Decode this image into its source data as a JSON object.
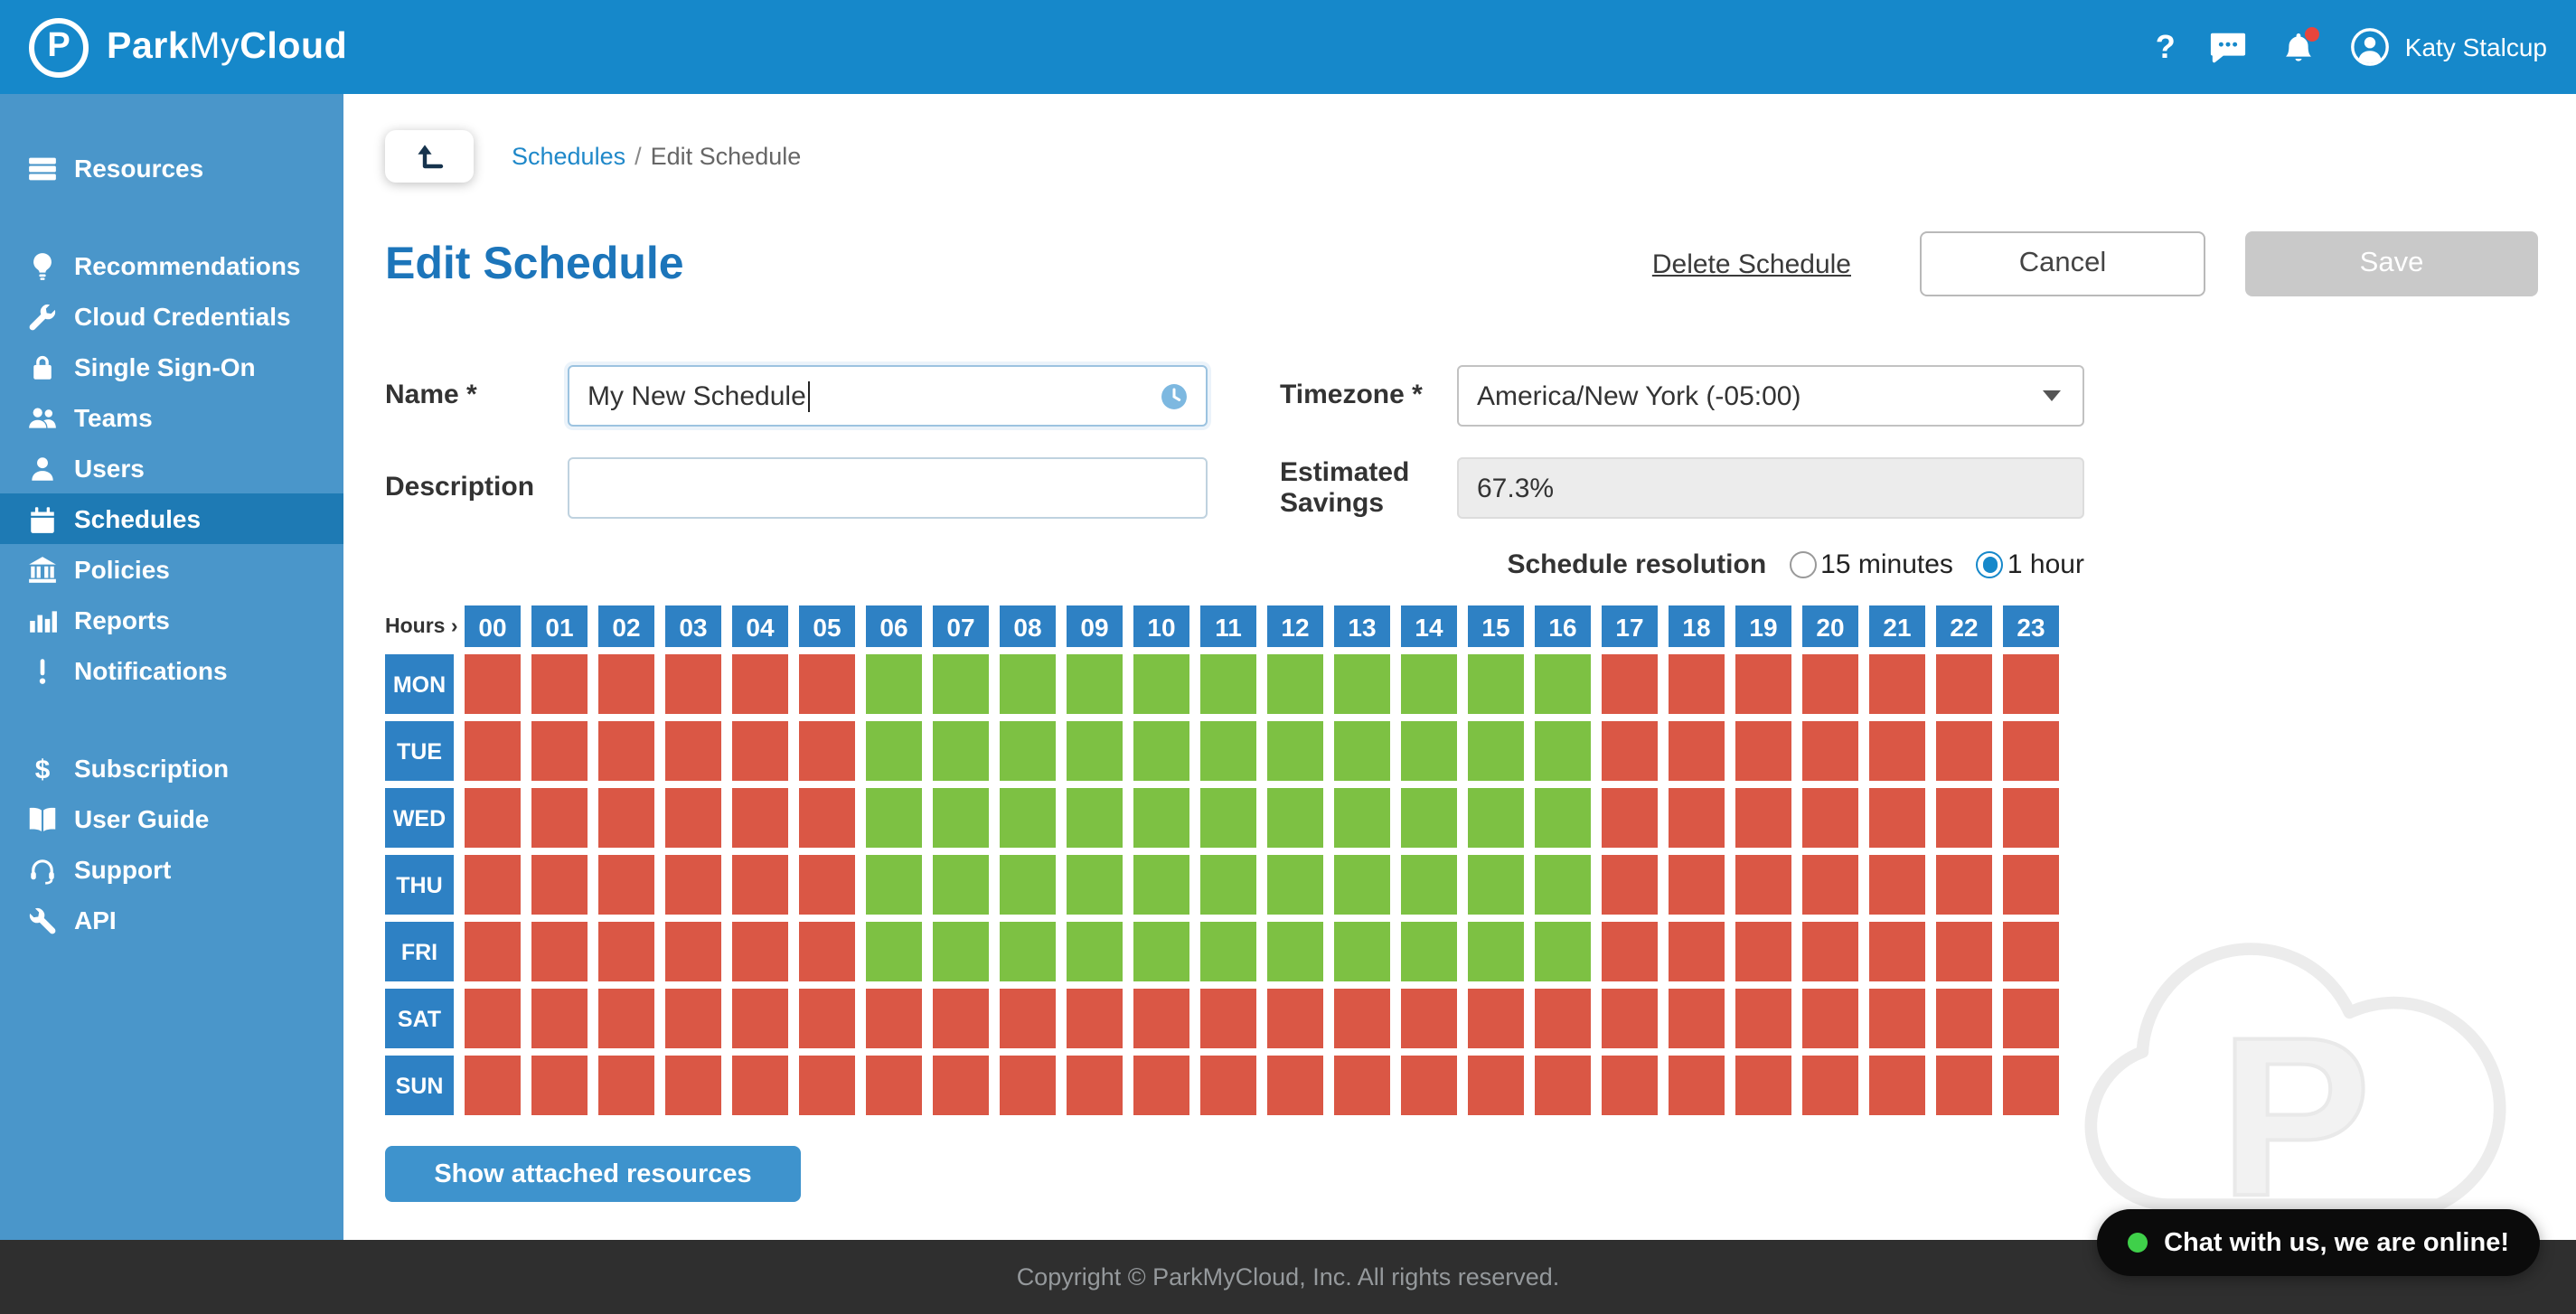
{
  "colors": {
    "header_blue": "#1688ca",
    "sidebar_blue": "#4a96ca",
    "active_blue": "#1e7ab4",
    "title_blue": "#1c75ba",
    "link_blue": "#1f88c9",
    "cell_on": "#7dc143",
    "cell_off": "#da5745",
    "cell_header": "#2e81c4",
    "chat_dot": "#3fd04a"
  },
  "header": {
    "logo_letter": "P",
    "brand_park": "Park",
    "brand_my": "My",
    "brand_cloud": "Cloud",
    "help": "?",
    "user_name": "Katy Stalcup"
  },
  "sidebar": {
    "groups": [
      {
        "items": [
          {
            "label": "Resources",
            "icon": "resources-icon",
            "active": false
          }
        ]
      },
      {
        "items": [
          {
            "label": "Recommendations",
            "icon": "lightbulb-icon",
            "active": false
          },
          {
            "label": "Cloud Credentials",
            "icon": "wrench-icon",
            "active": false
          },
          {
            "label": "Single Sign-On",
            "icon": "lock-icon",
            "active": false
          },
          {
            "label": "Teams",
            "icon": "people-icon",
            "active": false
          },
          {
            "label": "Users",
            "icon": "user-icon",
            "active": false
          },
          {
            "label": "Schedules",
            "icon": "calendar-icon",
            "active": true
          },
          {
            "label": "Policies",
            "icon": "bank-icon",
            "active": false
          },
          {
            "label": "Reports",
            "icon": "bar-chart-icon",
            "active": false
          },
          {
            "label": "Notifications",
            "icon": "exclamation-icon",
            "active": false
          }
        ]
      },
      {
        "items": [
          {
            "label": "Subscription",
            "icon": "dollar-icon",
            "active": false
          },
          {
            "label": "User Guide",
            "icon": "book-icon",
            "active": false
          },
          {
            "label": "Support",
            "icon": "headset-icon",
            "active": false
          },
          {
            "label": "API",
            "icon": "tools-icon",
            "active": false
          }
        ]
      }
    ]
  },
  "breadcrumb": {
    "link": "Schedules",
    "separator": "/",
    "current": "Edit Schedule"
  },
  "page": {
    "title": "Edit Schedule",
    "delete_label": "Delete Schedule",
    "cancel_label": "Cancel",
    "save_label": "Save"
  },
  "form": {
    "name_label": "Name *",
    "name_value": "My New Schedule",
    "timezone_label": "Timezone *",
    "timezone_value": "America/New York (-05:00)",
    "description_label": "Description",
    "description_value": "",
    "savings_label": "Estimated Savings",
    "savings_value": "67.3%",
    "resolution_label": "Schedule resolution",
    "resolution_options": [
      {
        "label": "15 minutes",
        "selected": false
      },
      {
        "label": "1 hour",
        "selected": true
      }
    ]
  },
  "grid": {
    "hours_label": "Hours ›",
    "hours": [
      "00",
      "01",
      "02",
      "03",
      "04",
      "05",
      "06",
      "07",
      "08",
      "09",
      "10",
      "11",
      "12",
      "13",
      "14",
      "15",
      "16",
      "17",
      "18",
      "19",
      "20",
      "21",
      "22",
      "23"
    ],
    "rows": [
      {
        "day": "MON",
        "on_from": 6,
        "on_to": 16
      },
      {
        "day": "TUE",
        "on_from": 6,
        "on_to": 16
      },
      {
        "day": "WED",
        "on_from": 6,
        "on_to": 16
      },
      {
        "day": "THU",
        "on_from": 6,
        "on_to": 16
      },
      {
        "day": "FRI",
        "on_from": 6,
        "on_to": 16
      },
      {
        "day": "SAT",
        "on_from": null,
        "on_to": null
      },
      {
        "day": "SUN",
        "on_from": null,
        "on_to": null
      }
    ]
  },
  "attached_button": "Show attached resources",
  "chat": {
    "text": "Chat with us, we are online!"
  },
  "footer": {
    "copyright": "Copyright © ParkMyCloud, Inc. All rights reserved."
  },
  "watermark_letter": "P"
}
